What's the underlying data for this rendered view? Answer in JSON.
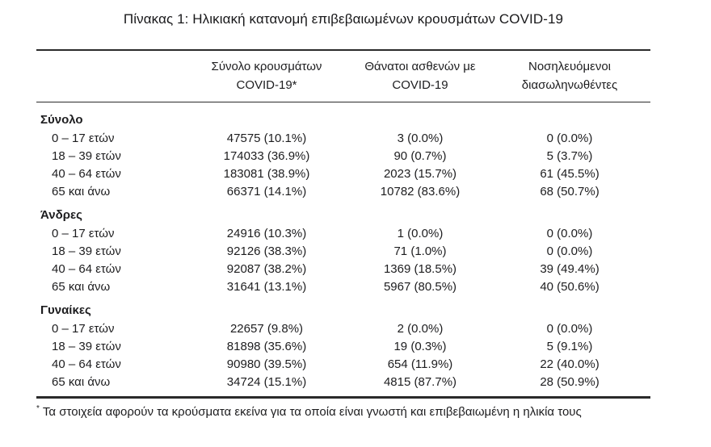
{
  "title": "Πίνακας 1: Ηλικιακή κατανομή επιβεβαιωμένων κρουσμάτων COVID-19",
  "table": {
    "columns": [
      {
        "line1": "Σύνολο κρουσμάτων",
        "line2": "COVID-19*"
      },
      {
        "line1": "Θάνατοι ασθενών με",
        "line2": "COVID-19"
      },
      {
        "line1": "Νοσηλευόμενοι",
        "line2": "διασωληνωθέντες"
      }
    ],
    "sections": [
      {
        "label": "Σύνολο",
        "rows": [
          {
            "age": "0 – 17 ετών",
            "cases": "47575 (10.1%)",
            "deaths": "3 (0.0%)",
            "intubated": "0 (0.0%)"
          },
          {
            "age": "18 – 39 ετών",
            "cases": "174033 (36.9%)",
            "deaths": "90 (0.7%)",
            "intubated": "5 (3.7%)"
          },
          {
            "age": "40 – 64 ετών",
            "cases": "183081 (38.9%)",
            "deaths": "2023 (15.7%)",
            "intubated": "61 (45.5%)"
          },
          {
            "age": "65 και άνω",
            "cases": "66371 (14.1%)",
            "deaths": "10782 (83.6%)",
            "intubated": "68 (50.7%)"
          }
        ]
      },
      {
        "label": "Άνδρες",
        "rows": [
          {
            "age": "0 – 17 ετών",
            "cases": "24916 (10.3%)",
            "deaths": "1 (0.0%)",
            "intubated": "0 (0.0%)"
          },
          {
            "age": "18 – 39 ετών",
            "cases": "92126 (38.3%)",
            "deaths": "71 (1.0%)",
            "intubated": "0 (0.0%)"
          },
          {
            "age": "40 – 64 ετών",
            "cases": "92087 (38.2%)",
            "deaths": "1369 (18.5%)",
            "intubated": "39 (49.4%)"
          },
          {
            "age": "65 και άνω",
            "cases": "31641 (13.1%)",
            "deaths": "5967 (80.5%)",
            "intubated": "40 (50.6%)"
          }
        ]
      },
      {
        "label": "Γυναίκες",
        "rows": [
          {
            "age": "0 – 17 ετών",
            "cases": "22657 (9.8%)",
            "deaths": "2 (0.0%)",
            "intubated": "0 (0.0%)"
          },
          {
            "age": "18 – 39 ετών",
            "cases": "81898 (35.6%)",
            "deaths": "19 (0.3%)",
            "intubated": "5 (9.1%)"
          },
          {
            "age": "40 – 64 ετών",
            "cases": "90980 (39.5%)",
            "deaths": "654 (11.9%)",
            "intubated": "22 (40.0%)"
          },
          {
            "age": "65 και άνω",
            "cases": "34724 (15.1%)",
            "deaths": "4815 (87.7%)",
            "intubated": "28 (50.9%)"
          }
        ]
      }
    ],
    "footnote_marker": "*",
    "footnote": "Τα στοιχεία αφορούν τα κρούσματα εκείνα για τα οποία είναι γνωστή και επιβεβαιωμένη η ηλικία τους"
  },
  "colors": {
    "text": "#1d1d1f",
    "rule": "#2a2a2a",
    "background": "#ffffff"
  }
}
